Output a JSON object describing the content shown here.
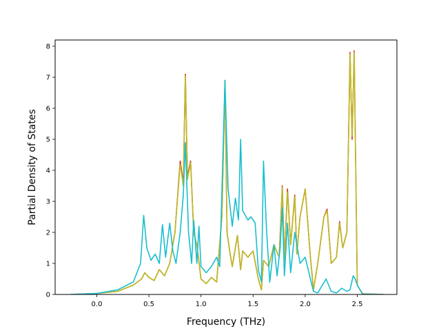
{
  "chart_data": {
    "type": "line",
    "xlabel": "Frequency (THz)",
    "ylabel": "Partial Density of States",
    "xlim": [
      -0.4,
      2.88
    ],
    "ylim": [
      0,
      8.2
    ],
    "xticks": [
      "0.0",
      "0.5",
      "1.0",
      "1.5",
      "2.0",
      "2.5"
    ],
    "xtick_values": [
      0.0,
      0.5,
      1.0,
      1.5,
      2.0,
      2.5
    ],
    "yticks": [
      "0",
      "1",
      "2",
      "3",
      "4",
      "5",
      "6",
      "7",
      "8"
    ],
    "ytick_values": [
      0,
      1,
      2,
      3,
      4,
      5,
      6,
      7,
      8
    ],
    "grid": false,
    "series": [
      {
        "color": "#d62728",
        "x": [
          -0.25,
          0.0,
          0.2,
          0.35,
          0.43,
          0.46,
          0.5,
          0.55,
          0.6,
          0.65,
          0.7,
          0.75,
          0.8,
          0.83,
          0.85,
          0.87,
          0.9,
          0.93,
          0.96,
          1.0,
          1.05,
          1.1,
          1.15,
          1.2,
          1.23,
          1.25,
          1.28,
          1.3,
          1.35,
          1.38,
          1.4,
          1.45,
          1.5,
          1.55,
          1.58,
          1.6,
          1.65,
          1.7,
          1.75,
          1.78,
          1.8,
          1.83,
          1.86,
          1.9,
          1.92,
          1.95,
          2.0,
          2.05,
          2.08,
          2.12,
          2.18,
          2.21,
          2.25,
          2.3,
          2.33,
          2.36,
          2.4,
          2.43,
          2.45,
          2.47,
          2.5,
          2.55,
          2.75
        ],
        "y": [
          0,
          0.03,
          0.1,
          0.3,
          0.5,
          0.7,
          0.55,
          0.45,
          0.8,
          0.6,
          1.0,
          2.0,
          4.3,
          3.6,
          7.1,
          3.8,
          4.3,
          2.0,
          1.6,
          0.5,
          0.35,
          0.55,
          0.4,
          2.5,
          6.9,
          2.0,
          1.3,
          0.9,
          1.9,
          0.8,
          1.4,
          1.2,
          1.4,
          0.5,
          0.15,
          1.1,
          0.9,
          1.6,
          1.2,
          3.5,
          1.1,
          3.4,
          1.6,
          3.2,
          1.3,
          2.5,
          3.4,
          1.2,
          0.15,
          1.0,
          2.5,
          2.75,
          1.0,
          1.2,
          2.35,
          1.5,
          2.0,
          7.8,
          5.0,
          7.85,
          0.3,
          0.02,
          0
        ],
        "name": ""
      },
      {
        "color": "#bcbd22",
        "x": [
          -0.25,
          0.0,
          0.2,
          0.35,
          0.43,
          0.46,
          0.5,
          0.55,
          0.6,
          0.65,
          0.7,
          0.75,
          0.8,
          0.83,
          0.85,
          0.87,
          0.9,
          0.93,
          0.96,
          1.0,
          1.05,
          1.1,
          1.15,
          1.2,
          1.23,
          1.25,
          1.28,
          1.3,
          1.35,
          1.38,
          1.4,
          1.45,
          1.5,
          1.55,
          1.58,
          1.6,
          1.65,
          1.7,
          1.75,
          1.78,
          1.8,
          1.83,
          1.86,
          1.9,
          1.92,
          1.95,
          2.0,
          2.05,
          2.08,
          2.12,
          2.18,
          2.21,
          2.25,
          2.3,
          2.33,
          2.36,
          2.4,
          2.43,
          2.45,
          2.47,
          2.5,
          2.55,
          2.75
        ],
        "y": [
          0,
          0.03,
          0.1,
          0.3,
          0.5,
          0.7,
          0.55,
          0.45,
          0.8,
          0.6,
          1.0,
          2.0,
          4.2,
          3.5,
          7.05,
          3.7,
          4.25,
          2.0,
          1.6,
          0.5,
          0.35,
          0.55,
          0.4,
          2.5,
          6.85,
          2.0,
          1.3,
          0.9,
          1.9,
          0.8,
          1.4,
          1.2,
          1.4,
          0.5,
          0.15,
          1.1,
          0.9,
          1.6,
          1.2,
          3.45,
          1.1,
          3.3,
          1.6,
          3.15,
          1.3,
          2.5,
          3.4,
          1.2,
          0.15,
          1.0,
          2.5,
          2.7,
          1.0,
          1.2,
          2.3,
          1.5,
          2.0,
          7.75,
          5.1,
          7.8,
          0.3,
          0.02,
          0
        ],
        "name": ""
      },
      {
        "color": "#17becf",
        "x": [
          -0.25,
          0.0,
          0.2,
          0.35,
          0.42,
          0.45,
          0.48,
          0.52,
          0.56,
          0.6,
          0.63,
          0.66,
          0.7,
          0.73,
          0.76,
          0.8,
          0.83,
          0.85,
          0.88,
          0.91,
          0.93,
          0.96,
          0.98,
          1.0,
          1.05,
          1.1,
          1.15,
          1.18,
          1.2,
          1.23,
          1.26,
          1.3,
          1.33,
          1.36,
          1.38,
          1.4,
          1.45,
          1.48,
          1.52,
          1.55,
          1.58,
          1.6,
          1.63,
          1.66,
          1.7,
          1.73,
          1.76,
          1.78,
          1.8,
          1.83,
          1.86,
          1.9,
          1.95,
          2.0,
          2.05,
          2.08,
          2.12,
          2.2,
          2.25,
          2.3,
          2.35,
          2.4,
          2.43,
          2.46,
          2.48,
          2.5,
          2.55,
          2.75
        ],
        "y": [
          0,
          0.03,
          0.15,
          0.4,
          1.0,
          2.55,
          1.5,
          1.1,
          1.3,
          1.0,
          2.25,
          1.2,
          2.3,
          1.4,
          1.0,
          2.0,
          3.2,
          4.9,
          2.0,
          1.0,
          2.4,
          1.0,
          2.2,
          0.9,
          0.7,
          0.9,
          1.2,
          0.9,
          3.3,
          6.9,
          3.4,
          2.2,
          3.1,
          2.4,
          5.0,
          2.7,
          2.4,
          2.5,
          2.3,
          0.8,
          0.4,
          4.3,
          2.0,
          0.4,
          1.6,
          0.6,
          1.5,
          2.8,
          0.6,
          2.3,
          0.7,
          2.0,
          1.0,
          1.2,
          0.5,
          0.1,
          0.05,
          0.5,
          0.1,
          0.05,
          0.2,
          0.1,
          0.15,
          0.6,
          0.5,
          0.3,
          0.01,
          0
        ],
        "name": ""
      }
    ]
  }
}
